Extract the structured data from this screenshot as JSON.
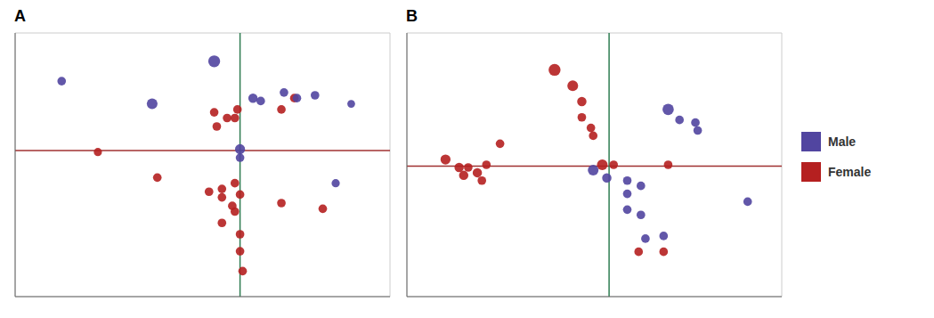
{
  "chart_data": [
    {
      "type": "scatter",
      "title": "A",
      "xlim": [
        -0.6,
        0.85
      ],
      "ylim": [
        -0.5,
        0.43
      ],
      "xticks": [
        -0.6,
        -0.4,
        -0.2,
        0,
        0.2,
        0.4,
        0.6,
        0.8
      ],
      "yticks": [
        -0.4,
        -0.2,
        0,
        0.2,
        0.4
      ],
      "grid": true,
      "tick_labels": false,
      "reference_lines": [
        {
          "axis": "y",
          "value": 0.015,
          "color": "#a03030"
        },
        {
          "axis": "x",
          "value": 0.27,
          "color": "#2e7d52"
        }
      ],
      "series": [
        {
          "name": "Female",
          "color": "#b52020",
          "x": [
            -0.28,
            0.17,
            0.26,
            0.22,
            0.18,
            0.25,
            0.48,
            0.43,
            -0.05,
            0.15,
            0.2,
            0.2,
            0.24,
            0.27,
            0.25,
            0.2,
            0.25,
            0.27,
            0.43,
            0.59,
            0.27,
            0.28
          ],
          "values": [
            0.01,
            0.15,
            0.16,
            0.13,
            0.1,
            0.13,
            0.2,
            0.16,
            -0.08,
            -0.13,
            -0.12,
            -0.15,
            -0.18,
            -0.14,
            -0.2,
            -0.24,
            -0.1,
            -0.28,
            -0.17,
            -0.19,
            -0.34,
            -0.41
          ],
          "sizes": [
            7,
            8,
            8,
            8,
            8,
            8,
            8,
            8,
            8,
            8,
            8,
            8,
            8,
            8,
            8,
            8,
            8,
            8,
            8,
            8,
            8,
            8
          ]
        },
        {
          "name": "Male",
          "color": "#5145a0",
          "x": [
            -0.42,
            0.17,
            -0.07,
            0.32,
            0.35,
            0.44,
            0.49,
            0.56,
            0.7,
            0.27,
            0.27,
            0.64
          ],
          "values": [
            0.26,
            0.33,
            0.18,
            0.2,
            0.19,
            0.22,
            0.2,
            0.21,
            0.18,
            0.02,
            -0.01,
            -0.1
          ],
          "sizes": [
            8,
            18,
            14,
            10,
            8,
            8,
            8,
            8,
            6,
            12,
            8,
            7
          ]
        }
      ]
    },
    {
      "type": "scatter",
      "title": "B",
      "xlim": [
        -0.55,
        1.1
      ],
      "ylim": [
        -0.5,
        0.5
      ],
      "xticks": [
        -0.5,
        -0.25,
        0,
        0.25,
        0.5,
        0.75,
        1
      ],
      "yticks": [
        -0.4,
        -0.2,
        0,
        0.2,
        0.4
      ],
      "grid": true,
      "tick_labels": false,
      "legend": "right",
      "reference_lines": [
        {
          "axis": "y",
          "value": -0.005,
          "color": "#a03030"
        },
        {
          "axis": "x",
          "value": 0.34,
          "color": "#2e7d52"
        }
      ],
      "series": [
        {
          "name": "Female",
          "color": "#b52020",
          "x": [
            -0.38,
            -0.32,
            -0.3,
            -0.28,
            -0.24,
            -0.22,
            -0.2,
            -0.14,
            0.1,
            0.18,
            0.22,
            0.22,
            0.26,
            0.27,
            0.31,
            0.36,
            0.6,
            0.47,
            0.58
          ],
          "values": [
            0.02,
            -0.01,
            -0.04,
            -0.01,
            -0.03,
            -0.06,
            0.0,
            0.08,
            0.36,
            0.3,
            0.24,
            0.18,
            0.14,
            0.11,
            0.0,
            0,
            0.0,
            -0.33,
            -0.33
          ],
          "sizes": [
            12,
            10,
            10,
            8,
            10,
            8,
            8,
            8,
            18,
            14,
            10,
            8,
            8,
            8,
            14,
            8,
            8,
            8,
            8
          ]
        },
        {
          "name": "Male",
          "color": "#5145a0",
          "x": [
            0.27,
            0.33,
            0.42,
            0.42,
            0.48,
            0.42,
            0.48,
            0.6,
            0.65,
            0.72,
            0.73,
            0.5,
            0.58,
            0.95
          ],
          "values": [
            -0.02,
            -0.05,
            -0.06,
            -0.11,
            -0.08,
            -0.17,
            -0.19,
            0.21,
            0.17,
            0.16,
            0.13,
            -0.28,
            -0.27,
            -0.14
          ],
          "sizes": [
            14,
            10,
            8,
            8,
            8,
            8,
            8,
            16,
            8,
            8,
            8,
            8,
            8,
            8
          ]
        }
      ]
    }
  ]
}
